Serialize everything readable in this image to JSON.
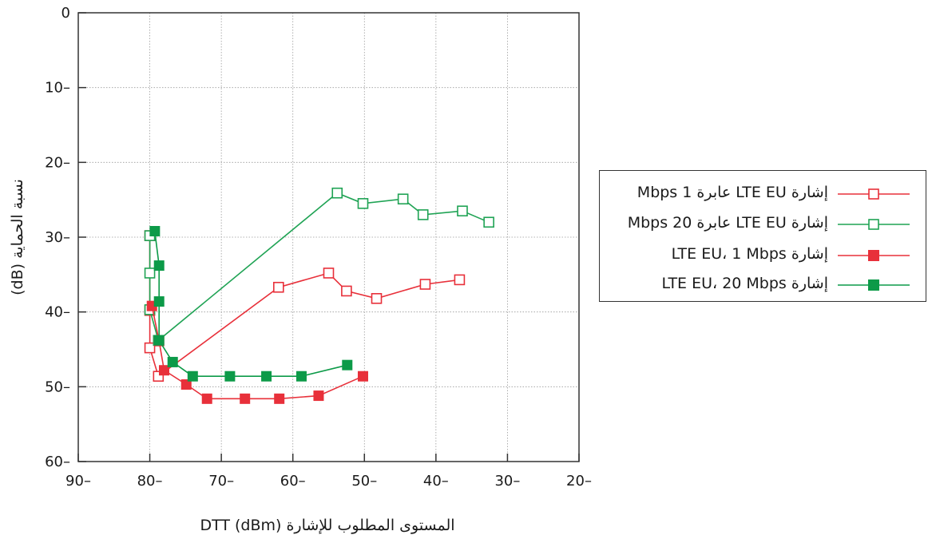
{
  "chart_data": {
    "type": "line",
    "xlabel": "المستوى المطلوب للإشارة DTT (dBm)",
    "ylabel": "نسبة الحماية (dB)",
    "xlim": [
      -90,
      -20
    ],
    "ylim": [
      0,
      60
    ],
    "x_axis_reversed": true,
    "y_axis_inverted": true,
    "grid": true,
    "legend_position": "right",
    "x_tick_labels": [
      "90–",
      "80–",
      "70–",
      "60–",
      "50–",
      "40–",
      "30–",
      "20–"
    ],
    "x_tick_values": [
      -90,
      -80,
      -70,
      -60,
      -50,
      -40,
      -30,
      -20
    ],
    "y_tick_labels": [
      "0",
      "10–",
      "20–",
      "30–",
      "40–",
      "50–",
      "60–"
    ],
    "y_tick_values": [
      0,
      10,
      20,
      30,
      40,
      50,
      60
    ],
    "series": [
      {
        "name": "إشارة LTE EU عابرة 1 Mbps",
        "color": "#e8303a",
        "marker": "square-open",
        "points": [
          [
            -80,
            29.8
          ],
          [
            -80,
            39.8
          ],
          [
            -80,
            44.8
          ],
          [
            -78.8,
            48.6
          ],
          [
            -62,
            36.7
          ],
          [
            -55,
            34.8
          ],
          [
            -52.5,
            37.2
          ],
          [
            -48.3,
            38.2
          ],
          [
            -41.5,
            36.3
          ],
          [
            -36.7,
            35.7
          ]
        ]
      },
      {
        "name": "إشارة LTE EU عابرة 20 Mbps",
        "color": "#1fa354",
        "marker": "square-open",
        "points": [
          [
            -80,
            29.8
          ],
          [
            -80,
            34.8
          ],
          [
            -80,
            39.7
          ],
          [
            -78.8,
            43.8
          ],
          [
            -53.8,
            24.1
          ],
          [
            -50.2,
            25.5
          ],
          [
            -44.6,
            24.9
          ],
          [
            -41.8,
            27
          ],
          [
            -36.3,
            26.5
          ],
          [
            -32.6,
            28
          ]
        ]
      },
      {
        "name": "إشارة LTE EU، 1 Mbps",
        "color": "#e8303a",
        "marker": "square-filled",
        "points": [
          [
            -79.7,
            39.2
          ],
          [
            -78.7,
            43.9
          ],
          [
            -78,
            47.8
          ],
          [
            -74.9,
            49.7
          ],
          [
            -72,
            51.6
          ],
          [
            -66.7,
            51.6
          ],
          [
            -61.9,
            51.6
          ],
          [
            -56.4,
            51.2
          ],
          [
            -50.2,
            48.6
          ]
        ]
      },
      {
        "name": "إشارة LTE EU، 20 Mbps",
        "color": "#0c9a48",
        "marker": "square-filled",
        "points": [
          [
            -79.3,
            29.2
          ],
          [
            -78.7,
            33.8
          ],
          [
            -78.7,
            38.6
          ],
          [
            -78.7,
            43.8
          ],
          [
            -76.8,
            46.7
          ],
          [
            -74,
            48.6
          ],
          [
            -68.8,
            48.6
          ],
          [
            -63.7,
            48.6
          ],
          [
            -58.8,
            48.6
          ],
          [
            -52.4,
            47.1
          ]
        ]
      }
    ]
  }
}
